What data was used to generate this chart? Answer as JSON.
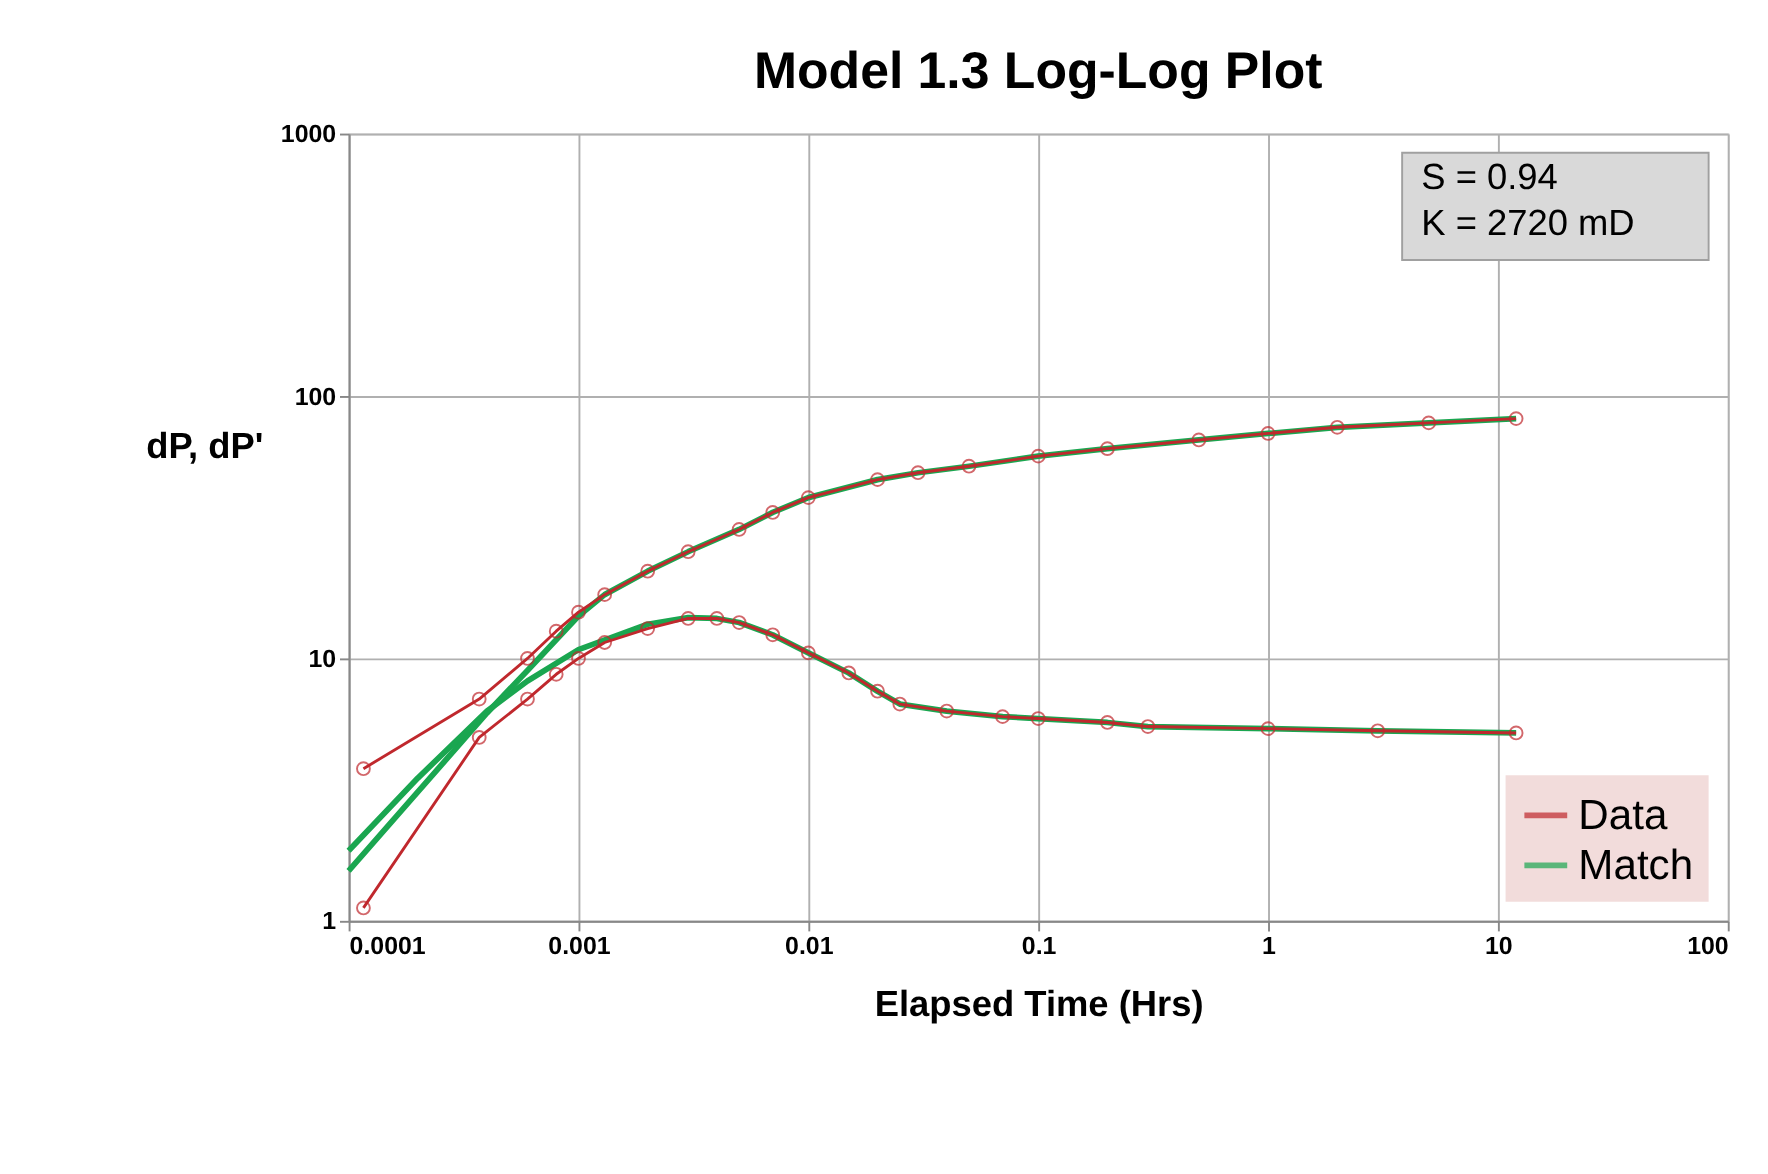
{
  "chart_data": {
    "type": "line",
    "title": "Model 1.3 Log-Log Plot",
    "xlabel": "Elapsed Time (Hrs)",
    "ylabel": "dP, dP'",
    "log": "xy",
    "grid": true,
    "legend": "bottom right",
    "xlim": [
      0.0001,
      100
    ],
    "xticks": [
      0.0001,
      0.001,
      0.01,
      0.1,
      1,
      10,
      100
    ],
    "ylim": [
      1,
      1000
    ],
    "yticks": [
      1,
      10,
      100,
      1000
    ],
    "annotations": [
      "S = 0.94",
      "K = 2720 mD"
    ],
    "series": [
      {
        "name": "Data",
        "color": "#c0282d",
        "marker": "circle",
        "x": [
          0.000116,
          0.00037,
          0.0006,
          0.0008,
          0.001,
          0.0013,
          0.002,
          0.003,
          0.005,
          0.007,
          0.01,
          0.02,
          0.03,
          0.05,
          0.1,
          0.2,
          0.5,
          1,
          2,
          5,
          12
        ],
        "values": [
          3.8,
          7.0,
          10,
          12.7,
          15,
          17.5,
          21.5,
          25.5,
          31,
          36,
          41,
          48,
          51,
          54,
          59,
          63,
          68,
          72,
          76,
          79,
          82
        ]
      },
      {
        "color": "#c0282d",
        "marker": "circle",
        "x": [
          0.000116,
          0.00037,
          0.0006,
          0.0008,
          0.001,
          0.0013,
          0.002,
          0.003,
          0.004,
          0.005,
          0.007,
          0.01,
          0.015,
          0.02,
          0.025,
          0.04,
          0.07,
          0.1,
          0.2,
          0.3,
          1,
          3,
          12
        ],
        "values": [
          1.12,
          5.0,
          7.0,
          8.7,
          10,
          11.5,
          13,
          14.2,
          14.2,
          13.7,
          12.3,
          10.5,
          8.8,
          7.5,
          6.7,
          6.3,
          6.0,
          5.9,
          5.7,
          5.5,
          5.4,
          5.3,
          5.2
        ]
      },
      {
        "name": "Match",
        "color": "#1aa650",
        "marker": "none",
        "x": [
          0.0001,
          0.0002,
          0.0004,
          0.0006,
          0.001,
          0.0013,
          0.002,
          0.003,
          0.005,
          0.007,
          0.01,
          0.02,
          0.03,
          0.05,
          0.1,
          0.2,
          0.5,
          1,
          2,
          5,
          12
        ],
        "values": [
          1.55,
          3.1,
          6.2,
          9,
          14.5,
          17.5,
          21.5,
          25.5,
          31,
          36,
          41,
          48,
          51,
          54,
          59,
          63,
          68,
          72,
          76,
          79,
          82
        ]
      },
      {
        "color": "#1aa650",
        "marker": "none",
        "x": [
          0.0001,
          0.0002,
          0.0004,
          0.0006,
          0.001,
          0.002,
          0.003,
          0.004,
          0.005,
          0.007,
          0.01,
          0.015,
          0.02,
          0.025,
          0.04,
          0.07,
          0.1,
          0.2,
          0.3,
          1,
          3,
          12
        ],
        "values": [
          1.85,
          3.5,
          6.3,
          8.2,
          10.8,
          13.5,
          14.3,
          14.2,
          13.7,
          12.3,
          10.5,
          8.8,
          7.5,
          6.7,
          6.3,
          6.0,
          5.9,
          5.7,
          5.5,
          5.4,
          5.3,
          5.2
        ]
      }
    ]
  }
}
